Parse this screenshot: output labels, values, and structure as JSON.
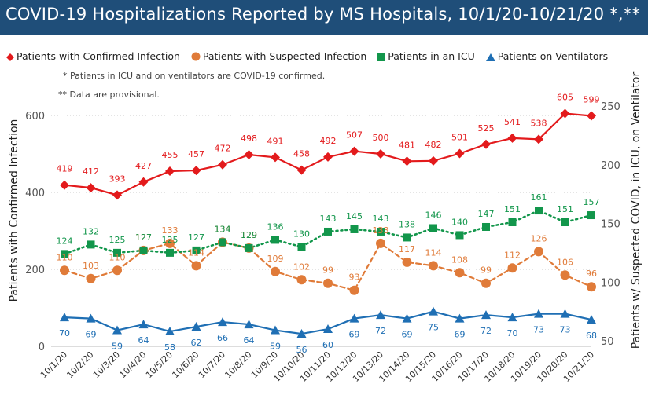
{
  "header": {
    "title": "COVID-19 Hospitalizations Reported by MS Hospitals, 10/1/20-10/21/20 *,**"
  },
  "notes": {
    "icu_note": "* Patients in ICU and on ventilators are COVID-19 confirmed.",
    "provisional_note": "** Data are provisional."
  },
  "colors": {
    "title_bar": "#1f4e79",
    "confirmed": "#e31a1c",
    "suspected": "#e07b39",
    "icu": "#12964b",
    "ventilator": "#1f6fb4"
  },
  "chart_data": {
    "type": "line",
    "x": [
      "10/1/20",
      "10/2/20",
      "10/3/20",
      "10/4/20",
      "10/5/20",
      "10/6/20",
      "10/7/20",
      "10/8/20",
      "10/9/20",
      "10/10/20",
      "10/11/20",
      "10/12/20",
      "10/13/20",
      "10/14/20",
      "10/15/20",
      "10/16/20",
      "10/17/20",
      "10/18/20",
      "10/19/20",
      "10/20/20",
      "10/21/20"
    ],
    "ylabel": "Patients with Confirmed Infection",
    "y2label": "Patients w/ Suspected COVID, in ICU, on Ventilator",
    "ylim": [
      0,
      650
    ],
    "y2lim": [
      50,
      265
    ],
    "yticks": [
      0,
      200,
      400,
      600
    ],
    "y2ticks": [
      50,
      100,
      150,
      200,
      250
    ],
    "grid": true,
    "legend_position": "top",
    "series": [
      {
        "name": "Patients with Confirmed Infection",
        "axis": "left",
        "marker": "diamond",
        "line": "solid",
        "color": "#e31a1c",
        "values": [
          419,
          412,
          393,
          427,
          455,
          457,
          472,
          498,
          491,
          458,
          492,
          507,
          500,
          481,
          482,
          501,
          525,
          541,
          538,
          605,
          599
        ]
      },
      {
        "name": "Patients with Suspected Infection",
        "axis": "right",
        "marker": "circle",
        "line": "dashed",
        "color": "#e07b39",
        "values": [
          110,
          103,
          110,
          127,
          133,
          114,
          134,
          129,
          109,
          102,
          99,
          93,
          133,
          117,
          114,
          108,
          99,
          112,
          126,
          106,
          96
        ]
      },
      {
        "name": "Patients in an ICU",
        "axis": "right",
        "marker": "square",
        "line": "dotted",
        "color": "#12964b",
        "values": [
          124,
          132,
          125,
          127,
          125,
          127,
          134,
          129,
          136,
          130,
          143,
          145,
          143,
          138,
          146,
          140,
          147,
          151,
          161,
          151,
          157
        ]
      },
      {
        "name": "Patients on Ventilators",
        "axis": "right",
        "marker": "triangle",
        "line": "solid",
        "color": "#1f6fb4",
        "values": [
          70,
          69,
          59,
          64,
          58,
          62,
          66,
          64,
          59,
          56,
          60,
          69,
          72,
          69,
          75,
          69,
          72,
          70,
          73,
          73,
          68
        ]
      }
    ]
  }
}
